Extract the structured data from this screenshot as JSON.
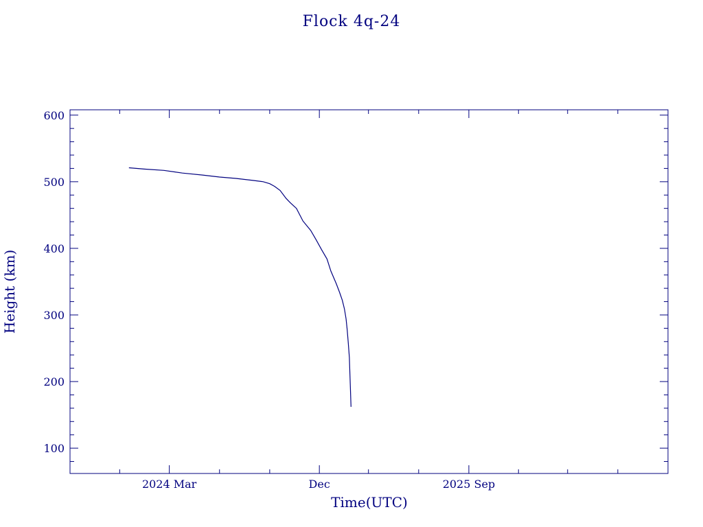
{
  "chart_data": {
    "type": "line",
    "title": "Flock 4q-24",
    "xlabel": "Time(UTC)",
    "ylabel": "Height (km)",
    "x_unit": "date",
    "xlim": [
      "2023-09-01",
      "2026-09-01"
    ],
    "ylim": [
      62,
      608
    ],
    "x_tick_labels": [
      {
        "label": "2024 Mar",
        "date": "2024-03-01"
      },
      {
        "label": "Dec",
        "date": "2024-12-01"
      },
      {
        "label": "2025 Sep",
        "date": "2025-09-01"
      }
    ],
    "y_ticks": [
      100,
      200,
      300,
      400,
      500,
      600
    ],
    "grid": false,
    "colors": {
      "axes": "#00007f",
      "line": "#00007f",
      "background": "#ffffff"
    },
    "series": [
      {
        "x": [
          "2023-12-18",
          "2024-01-15",
          "2024-02-20",
          "2024-03-25",
          "2024-05-01",
          "2024-06-01",
          "2024-07-01",
          "2024-08-01",
          "2024-08-20",
          "2024-09-01",
          "2024-09-10",
          "2024-09-20",
          "2024-10-01",
          "2024-10-08",
          "2024-10-20",
          "2024-11-01",
          "2024-11-15",
          "2024-11-25",
          "2024-12-05",
          "2024-12-15",
          "2024-12-22",
          "2025-01-01",
          "2025-01-07",
          "2025-01-12",
          "2025-01-16",
          "2025-01-19",
          "2025-01-21",
          "2025-01-23",
          "2025-01-25",
          "2025-01-26",
          "2025-01-27",
          "2025-01-28"
        ],
        "y": [
          521,
          519,
          517,
          513,
          510,
          507,
          505,
          502,
          500,
          497,
          493,
          487,
          475,
          469,
          460,
          441,
          427,
          413,
          398,
          384,
          366,
          347,
          334,
          322,
          309,
          294,
          278,
          258,
          236,
          211,
          187,
          162
        ]
      }
    ]
  }
}
